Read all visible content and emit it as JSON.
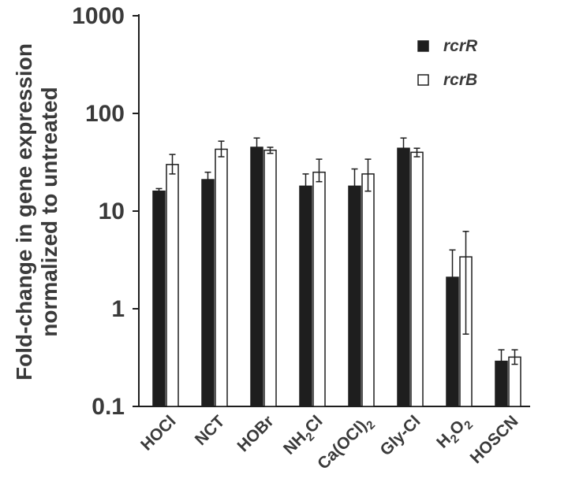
{
  "chart_data": {
    "type": "bar",
    "y_scale": "log",
    "ylim": [
      0.1,
      1000
    ],
    "yticks": [
      "0.1",
      "1",
      "10",
      "100",
      "1000"
    ],
    "ylabel_line1": "Fold-change in gene expression",
    "ylabel_line2": "normalized to untreated",
    "categories": [
      {
        "label": "HOCl"
      },
      {
        "label": "NCT"
      },
      {
        "label": "HOBr"
      },
      {
        "pre": "NH",
        "sub": "2",
        "post": "Cl"
      },
      {
        "pre": "Ca(OCl)",
        "sub": "2",
        "post": ""
      },
      {
        "label": "Gly-Cl"
      },
      {
        "pre": "H",
        "sub": "2",
        "post": "O",
        "sub2": "2"
      },
      {
        "label": "HOSCN"
      }
    ],
    "series": [
      {
        "name": "rcrR",
        "fill": "#1e1e1e",
        "values": [
          16,
          21,
          45,
          18,
          18,
          44,
          2.1,
          0.29
        ],
        "err_low": [
          15,
          18,
          37,
          14.5,
          13,
          37,
          1.2,
          0.24
        ],
        "err_high": [
          17,
          25,
          56,
          24,
          27,
          56,
          4.0,
          0.38
        ]
      },
      {
        "name": "rcrB",
        "fill": "#ffffff",
        "values": [
          30,
          43,
          42,
          25,
          24,
          40,
          3.4,
          0.32
        ],
        "err_low": [
          24,
          36,
          39,
          20,
          16,
          36,
          0.55,
          0.27
        ],
        "err_high": [
          38,
          52,
          45,
          34,
          34,
          44,
          6.2,
          0.38
        ]
      }
    ],
    "legend_position": "top-right"
  }
}
